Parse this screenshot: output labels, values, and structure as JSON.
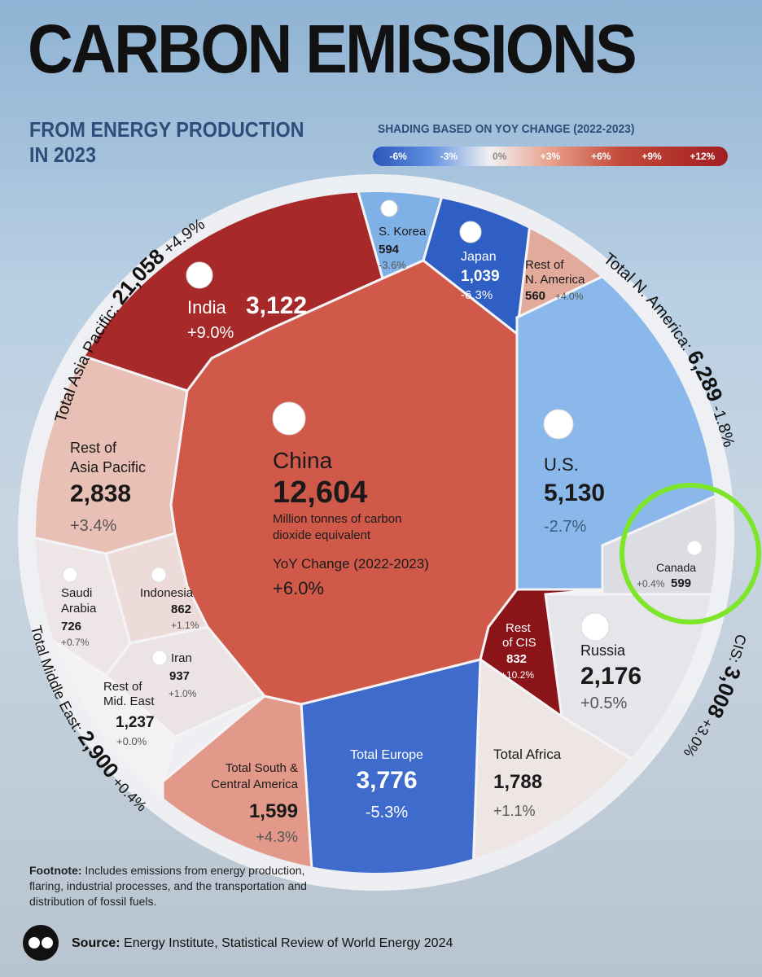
{
  "title": "CARBON EMISSIONS",
  "subtitle": "FROM ENERGY PRODUCTION IN 2023",
  "legend": {
    "title": "SHADING BASED ON YOY CHANGE (2022-2023)",
    "ticks": [
      "-6%",
      "-3%",
      "0%",
      "+3%",
      "+6%",
      "+9%",
      "+12%"
    ]
  },
  "chart_data": {
    "type": "treemap",
    "unit": "Million tonnes of carbon dioxide equivalent",
    "center": {
      "name": "China",
      "value": "12,604",
      "unit_line1": "Million tonnes of carbon",
      "unit_line2": "dioxide equivalent",
      "change_label": "YoY Change (2022-2023)",
      "change": "+6.0%"
    },
    "regions": [
      {
        "label": "Total Asia Pacific:",
        "value": "21,058",
        "change": "+4.9%"
      },
      {
        "label": "Total N. America:",
        "value": "6,289",
        "change": "-1.8%"
      },
      {
        "label": "CIS:",
        "value": "3,008",
        "change": "+3.0%"
      },
      {
        "label": "Total Middle East:",
        "value": "2,900",
        "change": "+0.4%"
      }
    ],
    "cells": [
      {
        "id": "india",
        "name": "India",
        "value": "3,122",
        "change": "+9.0%",
        "color": "#a8292a"
      },
      {
        "id": "skorea",
        "name": "S. Korea",
        "value": "594",
        "change": "-3.6%",
        "color": "#7fb0e6"
      },
      {
        "id": "japan",
        "name": "Japan",
        "value": "1,039",
        "change": "-6.3%",
        "color": "#2f5ec4"
      },
      {
        "id": "restna",
        "name1": "Rest of",
        "name2": "N. America",
        "value": "560",
        "change": "+4.0%",
        "color": "#e2aa9a"
      },
      {
        "id": "us",
        "name": "U.S.",
        "value": "5,130",
        "change": "-2.7%",
        "color": "#8ab8ea"
      },
      {
        "id": "canada",
        "name": "Canada",
        "value": "599",
        "change": "+0.4%",
        "color": "#dcdde3"
      },
      {
        "id": "russia",
        "name": "Russia",
        "value": "2,176",
        "change": "+0.5%",
        "color": "#e6e5ea"
      },
      {
        "id": "restcis",
        "name1": "Rest",
        "name2": "of CIS",
        "value": "832",
        "change": "+10.2%",
        "color": "#8b1418"
      },
      {
        "id": "africa",
        "name": "Total Africa",
        "value": "1,788",
        "change": "+1.1%",
        "color": "#eee6e4"
      },
      {
        "id": "europe",
        "name": "Total Europe",
        "value": "3,776",
        "change": "-5.3%",
        "color": "#3f6bcd"
      },
      {
        "id": "sca",
        "name1": "Total South &",
        "name2": "Central America",
        "value": "1,599",
        "change": "+4.3%",
        "color": "#e3998a"
      },
      {
        "id": "restme",
        "name1": "Rest of",
        "name2": "Mid. East",
        "value": "1,237",
        "change": "+0.0%",
        "color": "#f3f1f1"
      },
      {
        "id": "iran",
        "name": "Iran",
        "value": "937",
        "change": "+1.0%",
        "color": "#ece4e4"
      },
      {
        "id": "saudi",
        "name1": "Saudi",
        "name2": "Arabia",
        "value": "726",
        "change": "+0.7%",
        "color": "#eee6e6"
      },
      {
        "id": "indonesia",
        "name": "Indonesia",
        "value": "862",
        "change": "+1.1%",
        "color": "#ecdbd9"
      },
      {
        "id": "restap",
        "name1": "Rest of",
        "name2": "Asia Pacific",
        "value": "2,838",
        "change": "+3.4%",
        "color": "#e8c0b6"
      },
      {
        "id": "china",
        "name": "China",
        "value": "12,604",
        "change": "+6.0%",
        "color": "#d0594a"
      }
    ]
  },
  "footnote": {
    "label": "Footnote:",
    "text": "Includes emissions from energy production, flaring, industrial processes, and the transportation and distribution of fossil fuels."
  },
  "source": {
    "label": "Source:",
    "text": "Energy Institute, Statistical Review of World Energy 2024"
  },
  "highlight_color": "#7ee62a"
}
